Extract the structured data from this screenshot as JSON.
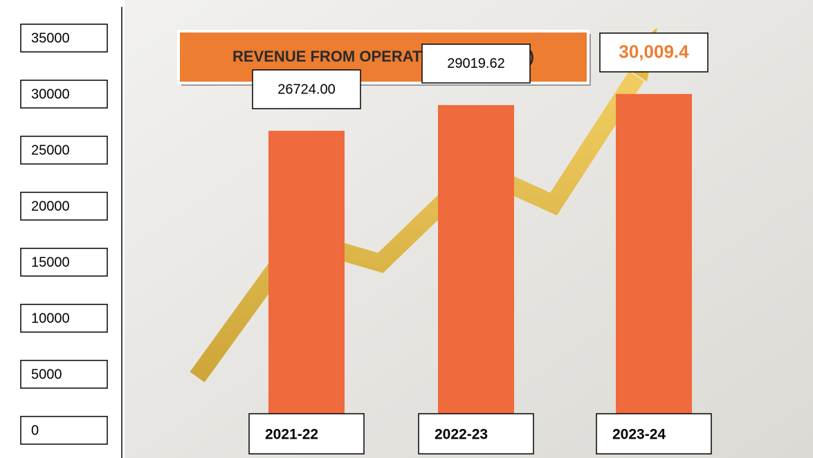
{
  "chart_data": {
    "type": "bar",
    "title": "REVENUE FROM OPERATIONS (IN LACS)",
    "categories": [
      "2021-22",
      "2022-23",
      "2023-24"
    ],
    "values": [
      26724,
      29019.62,
      30009.4
    ],
    "value_labels": [
      "26724.00",
      "29019.62",
      "30,009.4"
    ],
    "color": "#ef6a3c",
    "ylim": [
      0,
      35000
    ],
    "yticks": [
      0,
      5000,
      10000,
      15000,
      20000,
      25000,
      30000,
      35000
    ],
    "grid": false
  }
}
